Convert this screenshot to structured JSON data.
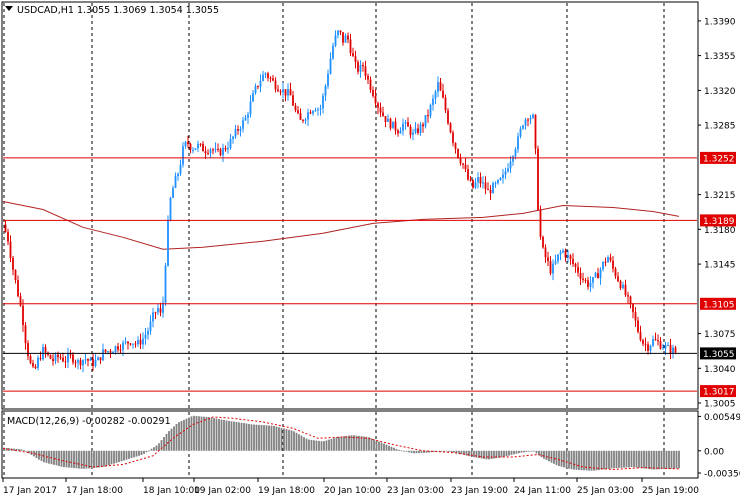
{
  "chart_data": [
    {
      "type": "candlestick",
      "symbol_header": "USDCAD,H1  1.3055 1.3069 1.3054 1.3055",
      "ylim": [
        1.3,
        1.3408
      ],
      "y_ticks": [
        "1.3390",
        "1.3355",
        "1.3320",
        "1.3285",
        "1.3215",
        "1.3180",
        "1.3145",
        "1.3075",
        "1.3040",
        "1.3005"
      ],
      "x_ticks": [
        "17 Jan 2017",
        "17 Jan 18:00",
        "18 Jan 10:00",
        "19 Jan 02:00",
        "19 Jan 18:00",
        "20 Jan 10:00",
        "23 Jan 03:00",
        "23 Jan 19:00",
        "24 Jan 11:00",
        "25 Jan 03:00",
        "25 Jan 19:00"
      ],
      "grid": "vertical dashed at each x tick",
      "levels": [
        {
          "label": "1.3252",
          "value": 1.3252,
          "color": "#e00000"
        },
        {
          "label": "1.3189",
          "value": 1.3189,
          "color": "#e00000"
        },
        {
          "label": "1.3105",
          "value": 1.3105,
          "color": "#e00000"
        },
        {
          "label": "1.3055",
          "value": 1.3055,
          "color": "#000000"
        },
        {
          "label": "1.3017",
          "value": 1.3017,
          "color": "#e00000"
        }
      ],
      "bull_color": "#1e90ff",
      "bear_color": "#e00000",
      "moving_average_color": "#b22222",
      "close_path": [
        [
          0,
          1.3185
        ],
        [
          5,
          1.317
        ],
        [
          10,
          1.314
        ],
        [
          15,
          1.3115
        ],
        [
          19,
          1.3095
        ],
        [
          23,
          1.3065
        ],
        [
          27,
          1.3045
        ],
        [
          31,
          1.3035
        ],
        [
          35,
          1.3048
        ],
        [
          40,
          1.3058
        ],
        [
          45,
          1.3052
        ],
        [
          50,
          1.3048
        ],
        [
          56,
          1.3052
        ],
        [
          62,
          1.3048
        ],
        [
          68,
          1.3052
        ],
        [
          75,
          1.3046
        ],
        [
          82,
          1.305
        ],
        [
          89,
          1.3045
        ],
        [
          95,
          1.3048
        ],
        [
          100,
          1.3056
        ],
        [
          107,
          1.3058
        ],
        [
          114,
          1.3062
        ],
        [
          121,
          1.3064
        ],
        [
          128,
          1.3068
        ],
        [
          134,
          1.3064
        ],
        [
          140,
          1.307
        ],
        [
          146,
          1.308
        ],
        [
          151,
          1.3095
        ],
        [
          155,
          1.31
        ],
        [
          159,
          1.309
        ],
        [
          162,
          1.314
        ],
        [
          165,
          1.3185
        ],
        [
          168,
          1.3215
        ],
        [
          172,
          1.3228
        ],
        [
          176,
          1.324
        ],
        [
          180,
          1.326
        ],
        [
          184,
          1.3268
        ],
        [
          189,
          1.3262
        ],
        [
          195,
          1.3264
        ],
        [
          202,
          1.326
        ],
        [
          208,
          1.3262
        ],
        [
          214,
          1.3256
        ],
        [
          220,
          1.326
        ],
        [
          226,
          1.3266
        ],
        [
          232,
          1.3276
        ],
        [
          237,
          1.3284
        ],
        [
          242,
          1.329
        ],
        [
          247,
          1.3305
        ],
        [
          252,
          1.332
        ],
        [
          257,
          1.333
        ],
        [
          262,
          1.3338
        ],
        [
          267,
          1.3332
        ],
        [
          272,
          1.3326
        ],
        [
          277,
          1.3322
        ],
        [
          282,
          1.3318
        ],
        [
          287,
          1.3316
        ],
        [
          292,
          1.33
        ],
        [
          297,
          1.3288
        ],
        [
          302,
          1.3294
        ],
        [
          307,
          1.33
        ],
        [
          312,
          1.3304
        ],
        [
          317,
          1.33
        ],
        [
          322,
          1.3322
        ],
        [
          327,
          1.335
        ],
        [
          331,
          1.337
        ],
        [
          336,
          1.338
        ],
        [
          340,
          1.337
        ],
        [
          344,
          1.3375
        ],
        [
          348,
          1.336
        ],
        [
          352,
          1.3345
        ],
        [
          356,
          1.334
        ],
        [
          360,
          1.3345
        ],
        [
          365,
          1.333
        ],
        [
          370,
          1.3318
        ],
        [
          375,
          1.3305
        ],
        [
          380,
          1.3295
        ],
        [
          385,
          1.3288
        ],
        [
          390,
          1.3284
        ],
        [
          395,
          1.328
        ],
        [
          400,
          1.3286
        ],
        [
          405,
          1.3282
        ],
        [
          410,
          1.3275
        ],
        [
          415,
          1.328
        ],
        [
          420,
          1.3286
        ],
        [
          425,
          1.3296
        ],
        [
          430,
          1.331
        ],
        [
          435,
          1.3326
        ],
        [
          440,
          1.331
        ],
        [
          445,
          1.329
        ],
        [
          450,
          1.327
        ],
        [
          455,
          1.3255
        ],
        [
          460,
          1.3245
        ],
        [
          465,
          1.323
        ],
        [
          470,
          1.3222
        ],
        [
          475,
          1.323
        ],
        [
          480,
          1.3225
        ],
        [
          485,
          1.3218
        ],
        [
          490,
          1.3222
        ],
        [
          495,
          1.3226
        ],
        [
          500,
          1.3232
        ],
        [
          505,
          1.3245
        ],
        [
          510,
          1.3258
        ],
        [
          515,
          1.327
        ],
        [
          520,
          1.3288
        ],
        [
          525,
          1.3295
        ],
        [
          530,
          1.3292
        ],
        [
          533,
          1.325
        ],
        [
          536,
          1.318
        ],
        [
          540,
          1.3158
        ],
        [
          544,
          1.3148
        ],
        [
          548,
          1.3138
        ],
        [
          552,
          1.3145
        ],
        [
          556,
          1.3155
        ],
        [
          560,
          1.3158
        ],
        [
          565,
          1.3152
        ],
        [
          570,
          1.3145
        ],
        [
          575,
          1.3138
        ],
        [
          580,
          1.313
        ],
        [
          585,
          1.3125
        ],
        [
          590,
          1.3128
        ],
        [
          595,
          1.3135
        ],
        [
          600,
          1.3145
        ],
        [
          605,
          1.3152
        ],
        [
          610,
          1.314
        ],
        [
          615,
          1.313
        ],
        [
          620,
          1.312
        ],
        [
          625,
          1.3108
        ],
        [
          630,
          1.3095
        ],
        [
          635,
          1.3078
        ],
        [
          640,
          1.3066
        ],
        [
          645,
          1.3062
        ],
        [
          650,
          1.3068
        ],
        [
          655,
          1.3066
        ],
        [
          660,
          1.3062
        ],
        [
          665,
          1.306
        ],
        [
          670,
          1.3058
        ],
        [
          674,
          1.3055
        ]
      ],
      "ma_path": [
        [
          0,
          1.3208
        ],
        [
          40,
          1.32
        ],
        [
          80,
          1.3182
        ],
        [
          120,
          1.3172
        ],
        [
          160,
          1.316
        ],
        [
          200,
          1.3162
        ],
        [
          260,
          1.3168
        ],
        [
          320,
          1.3176
        ],
        [
          370,
          1.3186
        ],
        [
          420,
          1.319
        ],
        [
          480,
          1.3192
        ],
        [
          520,
          1.3196
        ],
        [
          560,
          1.3204
        ],
        [
          610,
          1.3202
        ],
        [
          650,
          1.3198
        ],
        [
          676,
          1.3193
        ]
      ]
    },
    {
      "type": "histogram",
      "title": "MACD(12,26,9) -0.00282 -0.00291",
      "ylim": [
        -0.0042,
        0.0062
      ],
      "y_ticks": [
        "0.00549",
        "0.00",
        "-0.00356"
      ],
      "histogram_color": "#808080",
      "signal_color": "#e00000",
      "macd_path": [
        [
          0,
          0.0005
        ],
        [
          20,
          0.0002
        ],
        [
          40,
          -0.0018
        ],
        [
          60,
          -0.0026
        ],
        [
          80,
          -0.0029
        ],
        [
          100,
          -0.0026
        ],
        [
          120,
          -0.0016
        ],
        [
          140,
          -0.0006
        ],
        [
          155,
          0.001
        ],
        [
          165,
          0.003
        ],
        [
          175,
          0.0045
        ],
        [
          190,
          0.0056
        ],
        [
          205,
          0.0054
        ],
        [
          225,
          0.0048
        ],
        [
          250,
          0.0042
        ],
        [
          270,
          0.004
        ],
        [
          290,
          0.0032
        ],
        [
          305,
          0.0018
        ],
        [
          320,
          0.0015
        ],
        [
          335,
          0.0022
        ],
        [
          350,
          0.0025
        ],
        [
          365,
          0.0022
        ],
        [
          380,
          0.0012
        ],
        [
          395,
          0.0002
        ],
        [
          410,
          -0.0004
        ],
        [
          425,
          -0.0003
        ],
        [
          440,
          0.0
        ],
        [
          455,
          -0.0004
        ],
        [
          470,
          -0.001
        ],
        [
          485,
          -0.0014
        ],
        [
          500,
          -0.001
        ],
        [
          515,
          -0.0004
        ],
        [
          530,
          0.0
        ],
        [
          540,
          -0.0012
        ],
        [
          555,
          -0.0024
        ],
        [
          570,
          -0.003
        ],
        [
          590,
          -0.0032
        ],
        [
          610,
          -0.0028
        ],
        [
          630,
          -0.0026
        ],
        [
          650,
          -0.003
        ],
        [
          676,
          -0.0028
        ]
      ],
      "signal_path": [
        [
          0,
          0.0004
        ],
        [
          30,
          -0.0004
        ],
        [
          60,
          -0.0016
        ],
        [
          90,
          -0.0026
        ],
        [
          120,
          -0.0022
        ],
        [
          150,
          -0.0008
        ],
        [
          170,
          0.002
        ],
        [
          190,
          0.0042
        ],
        [
          210,
          0.0054
        ],
        [
          230,
          0.0052
        ],
        [
          260,
          0.0046
        ],
        [
          290,
          0.0036
        ],
        [
          315,
          0.002
        ],
        [
          340,
          0.0022
        ],
        [
          365,
          0.002
        ],
        [
          390,
          0.001
        ],
        [
          420,
          0.0
        ],
        [
          450,
          -0.0003
        ],
        [
          480,
          -0.001
        ],
        [
          510,
          -0.001
        ],
        [
          535,
          -0.0006
        ],
        [
          555,
          -0.0014
        ],
        [
          580,
          -0.0026
        ],
        [
          610,
          -0.003
        ],
        [
          640,
          -0.0027
        ],
        [
          676,
          -0.0029
        ]
      ]
    }
  ]
}
